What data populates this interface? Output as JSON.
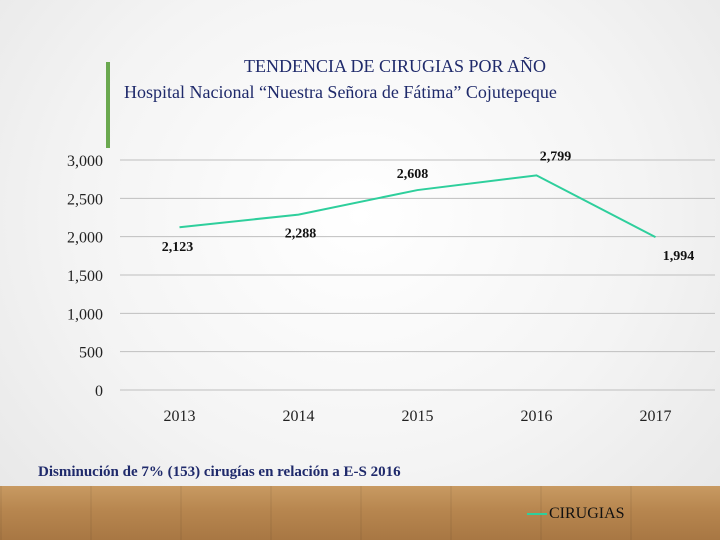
{
  "title_line1": "TENDENCIA DE CIRUGIAS POR AÑO",
  "title_line2": "Hospital Nacional “Nuestra Señora de Fátima” Cojutepeque",
  "note": "Disminución de 7% (153) cirugías en relación a E-S 2016",
  "colors": {
    "line": "#2ecf9c",
    "title": "#1f2a6b",
    "grid": "#bfbfbf",
    "accent": "#6aa84f"
  },
  "chart_data": {
    "type": "line",
    "categories": [
      "2013",
      "2014",
      "2015",
      "2016",
      "2017"
    ],
    "series": [
      {
        "name": "CIRUGIAS",
        "values": [
          2123,
          2288,
          2608,
          2799,
          1994
        ]
      }
    ],
    "data_labels": [
      "2,123",
      "2,288",
      "2,608",
      "2,799",
      "1,994"
    ],
    "ylim": [
      0,
      3000
    ],
    "yticks": [
      0,
      500,
      1000,
      1500,
      2000,
      2500,
      3000
    ],
    "ytick_labels": [
      "0",
      "500",
      "1,000",
      "1,500",
      "2,000",
      "2,500",
      "3,000"
    ],
    "legend_label": "CIRUGIAS",
    "legend_position": "bottom-right",
    "grid": true
  }
}
